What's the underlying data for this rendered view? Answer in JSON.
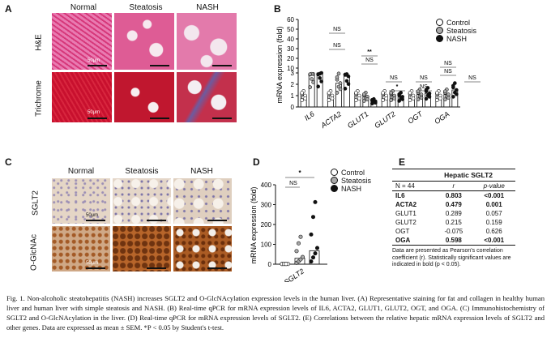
{
  "panelA": {
    "label": "A",
    "col_titles": [
      "Normal",
      "Steatosis",
      "NASH"
    ],
    "row_titles": [
      "H&E",
      "Trichrome"
    ],
    "scale_label": "50μm"
  },
  "panelB": {
    "label": "B",
    "legend": [
      "Control",
      "Steatosis",
      "NASH"
    ],
    "annotations": [
      "NS",
      "NS",
      "**",
      "NS",
      "NS",
      "*",
      "NS",
      "NS",
      "NS",
      "NS",
      "NS"
    ],
    "chart_data": {
      "type": "scatter",
      "ylabel": "mRNA expression (fold)",
      "ylim": [
        0,
        60
      ],
      "yticks": [
        "0",
        "1",
        "2",
        "3",
        "10",
        "20",
        "30",
        "40",
        "50",
        "60"
      ],
      "categories": [
        "IL6",
        "ACTA2",
        "GLUT1",
        "GLUT2",
        "OGT",
        "OGA"
      ],
      "series": [
        {
          "name": "Control",
          "means": [
            1.0,
            1.0,
            1.0,
            1.0,
            1.0,
            1.0
          ]
        },
        {
          "name": "Steatosis",
          "means": [
            2.9,
            2.1,
            0.9,
            1.0,
            1.1,
            1.1
          ]
        },
        {
          "name": "NASH",
          "means": [
            3.0,
            2.7,
            0.5,
            0.9,
            1.2,
            1.5
          ]
        }
      ]
    }
  },
  "panelC": {
    "label": "C",
    "col_titles": [
      "Normal",
      "Steatosis",
      "NASH"
    ],
    "row_titles": [
      "SGLT2",
      "O-GlcNAc"
    ],
    "scale_label": "50μm"
  },
  "panelD": {
    "label": "D",
    "legend": [
      "Control",
      "Steatosis",
      "NASH"
    ],
    "annotations": [
      "NS",
      "*"
    ],
    "chart_data": {
      "type": "scatter",
      "ylabel": "mRNA expression (fold)",
      "ylim": [
        0,
        400
      ],
      "yticks": [
        "0",
        "100",
        "200",
        "300",
        "400"
      ],
      "categories": [
        "SGLT2"
      ],
      "series": [
        {
          "name": "Control",
          "means": [
            1
          ]
        },
        {
          "name": "Steatosis",
          "means": [
            30
          ]
        },
        {
          "name": "NASH",
          "means": [
            68
          ]
        }
      ]
    }
  },
  "panelE": {
    "label": "E",
    "title": "Hepatic SGLT2",
    "header": [
      "N = 44",
      "r",
      "p-value"
    ],
    "rows": [
      {
        "gene": "IL6",
        "r": "0.803",
        "p": "<0.001",
        "bold": true
      },
      {
        "gene": "ACTA2",
        "r": "0.479",
        "p": "0.001",
        "bold": true
      },
      {
        "gene": "GLUT1",
        "r": "0.289",
        "p": "0.057",
        "bold": false
      },
      {
        "gene": "GLUT2",
        "r": "0.215",
        "p": "0.159",
        "bold": false
      },
      {
        "gene": "OGT",
        "r": "-0.075",
        "p": "0.626",
        "bold": false
      },
      {
        "gene": "OGA",
        "r": "0.598",
        "p": "<0.001",
        "bold": true
      }
    ],
    "note": "Data are presented as Pearson's correlation coefficient (r). Statistically significant values are indicated in bold (p < 0.05)."
  },
  "caption": "Fig. 1. Non-alcoholic steatohepatitis (NASH) increases SGLT2 and O-GlcNAcylation expression levels in the human liver. (A) Representative staining for fat and collagen in healthy human liver and human liver with simple steatosis and NASH. (B) Real-time qPCR for mRNA expression levels of IL6, ACTA2, GLUT1, GLUT2, OGT, and OGA. (C) Immunohistochemistry of SGLT2 and O-GlcNAcylation in the liver. (D) Real-time qPCR for mRNA expression levels of SGLT2. (E) Correlations between the relative hepatic mRNA expression levels of SGLT2 and other genes. Data are expressed as mean ± SEM. *P < 0.05 by Student's t-test."
}
